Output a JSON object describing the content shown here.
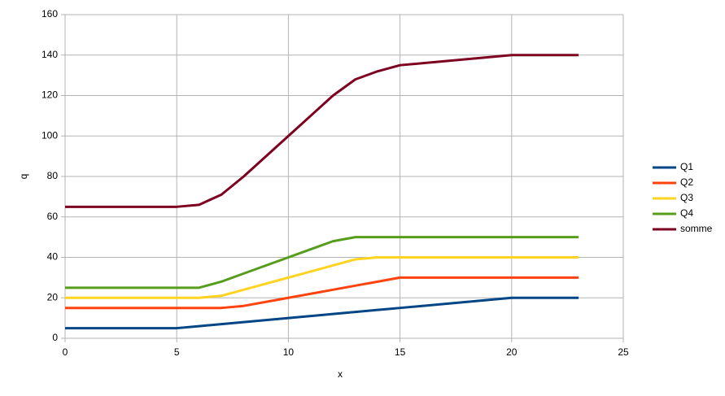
{
  "chart_data": {
    "type": "line",
    "x_label": "x",
    "y_label": "q",
    "x": [
      0,
      5,
      6,
      7,
      8,
      10,
      12,
      13,
      14,
      15,
      20,
      23
    ],
    "series": [
      {
        "name": "Q1",
        "color": "#004586",
        "values": [
          5,
          5,
          6,
          7,
          8,
          10,
          12,
          13,
          14,
          15,
          20,
          20
        ]
      },
      {
        "name": "Q2",
        "color": "#ff420e",
        "values": [
          15,
          15,
          15,
          15,
          16,
          20,
          24,
          26,
          28,
          30,
          30,
          30
        ]
      },
      {
        "name": "Q3",
        "color": "#ffd320",
        "values": [
          20,
          20,
          20,
          21,
          24,
          30,
          36,
          39,
          40,
          40,
          40,
          40
        ]
      },
      {
        "name": "Q4",
        "color": "#579d1c",
        "values": [
          25,
          25,
          25,
          28,
          32,
          40,
          48,
          50,
          50,
          50,
          50,
          50
        ]
      },
      {
        "name": "somme",
        "color": "#7e0021",
        "values": [
          65,
          65,
          66,
          71,
          80,
          100,
          120,
          128,
          132,
          135,
          140,
          140
        ]
      }
    ],
    "xlim": [
      0,
      25
    ],
    "xticks": [
      0,
      5,
      10,
      15,
      20,
      25
    ],
    "ylim": [
      0,
      160
    ],
    "yticks": [
      0,
      20,
      40,
      60,
      80,
      100,
      120,
      140,
      160
    ],
    "grid": true,
    "legend": "right"
  }
}
